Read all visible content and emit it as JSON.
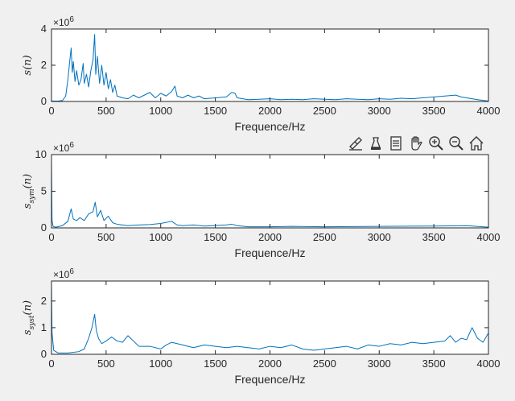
{
  "toolbar": {
    "items": [
      {
        "name": "brush-data-icon"
      },
      {
        "name": "data-tips-icon"
      },
      {
        "name": "insert-legend-icon"
      },
      {
        "name": "pan-hand-icon"
      },
      {
        "name": "zoom-in-icon"
      },
      {
        "name": "zoom-out-icon"
      },
      {
        "name": "restore-view-icon"
      }
    ]
  },
  "colors": {
    "background": "#f0f0f0",
    "axes": "#ffffff",
    "line": "#0072bd",
    "text": "#262626"
  },
  "chart_data": [
    {
      "type": "line",
      "ylabel_main": "s(n)",
      "ylabel_sub": "",
      "xlabel": "Frequence/Hz",
      "exponent_label": "×10",
      "exponent_power": "6",
      "xlim": [
        0,
        4000
      ],
      "ylim": [
        0,
        4
      ],
      "xticks": [
        0,
        500,
        1000,
        1500,
        2000,
        2500,
        3000,
        3500,
        4000
      ],
      "yticks": [
        0,
        2,
        4
      ],
      "series": [
        {
          "x": [
            0,
            10,
            60,
            100,
            130,
            150,
            170,
            180,
            190,
            200,
            215,
            230,
            250,
            270,
            290,
            300,
            320,
            340,
            360,
            380,
            395,
            405,
            420,
            440,
            460,
            480,
            500,
            520,
            540,
            560,
            580,
            600,
            650,
            700,
            750,
            800,
            900,
            950,
            1000,
            1050,
            1100,
            1130,
            1150,
            1200,
            1250,
            1300,
            1350,
            1400,
            1500,
            1600,
            1650,
            1680,
            1700,
            1800,
            1900,
            2000,
            2100,
            2200,
            2300,
            2400,
            2500,
            2600,
            2700,
            2800,
            2900,
            3000,
            3100,
            3200,
            3300,
            3400,
            3500,
            3600,
            3700,
            3750,
            3800,
            3900,
            4000
          ],
          "values": [
            0.05,
            0.02,
            0.02,
            0.05,
            0.3,
            1.2,
            2.4,
            2.95,
            1.6,
            2.2,
            1.1,
            1.7,
            0.9,
            1.2,
            2.1,
            1.0,
            1.5,
            0.8,
            1.7,
            2.3,
            3.7,
            1.5,
            2.5,
            1.0,
            2.0,
            0.9,
            1.6,
            0.7,
            1.2,
            0.5,
            0.9,
            0.3,
            0.2,
            0.15,
            0.35,
            0.2,
            0.5,
            0.2,
            0.45,
            0.3,
            0.55,
            0.85,
            0.3,
            0.2,
            0.35,
            0.2,
            0.3,
            0.15,
            0.2,
            0.25,
            0.5,
            0.45,
            0.2,
            0.1,
            0.12,
            0.15,
            0.1,
            0.12,
            0.1,
            0.15,
            0.12,
            0.1,
            0.15,
            0.12,
            0.1,
            0.15,
            0.12,
            0.18,
            0.15,
            0.2,
            0.25,
            0.3,
            0.35,
            0.25,
            0.2,
            0.1,
            0.02
          ]
        }
      ]
    },
    {
      "type": "line",
      "ylabel_main": "s",
      "ylabel_sub": "sym",
      "ylabel_suffix": "(n)",
      "xlabel": "Frequence/Hz",
      "exponent_label": "×10",
      "exponent_power": "6",
      "xlim": [
        0,
        4000
      ],
      "ylim": [
        0,
        10
      ],
      "xticks": [
        0,
        500,
        1000,
        1500,
        2000,
        2500,
        3000,
        3500,
        4000
      ],
      "yticks": [
        0,
        5,
        10
      ],
      "series": [
        {
          "x": [
            0,
            5,
            15,
            40,
            100,
            150,
            180,
            200,
            230,
            260,
            300,
            340,
            380,
            400,
            420,
            450,
            480,
            520,
            560,
            600,
            700,
            800,
            900,
            1000,
            1100,
            1150,
            1200,
            1300,
            1400,
            1600,
            1650,
            1700,
            1800,
            2000,
            2200,
            2500,
            3000,
            3500,
            3800,
            4000
          ],
          "values": [
            9.0,
            1.0,
            0.2,
            0.1,
            0.3,
            0.9,
            2.6,
            1.2,
            1.0,
            1.4,
            1.0,
            1.9,
            2.2,
            3.5,
            1.5,
            2.4,
            1.0,
            1.6,
            0.7,
            0.5,
            0.3,
            0.4,
            0.45,
            0.6,
            0.9,
            0.4,
            0.3,
            0.4,
            0.25,
            0.4,
            0.5,
            0.3,
            0.15,
            0.15,
            0.2,
            0.15,
            0.2,
            0.25,
            0.3,
            0.1
          ]
        }
      ]
    },
    {
      "type": "line",
      "ylabel_main": "s",
      "ylabel_sub": "syst",
      "ylabel_suffix": "(n)",
      "xlabel": "Frequence/Hz",
      "exponent_label": "×10",
      "exponent_power": "6",
      "xlim": [
        0,
        4000
      ],
      "ylim": [
        0,
        2.75
      ],
      "xticks": [
        0,
        500,
        1000,
        1500,
        2000,
        2500,
        3000,
        3500,
        4000
      ],
      "yticks": [
        0,
        1,
        2
      ],
      "series": [
        {
          "x": [
            0,
            5,
            20,
            60,
            150,
            250,
            300,
            340,
            370,
            395,
            410,
            430,
            460,
            500,
            550,
            600,
            650,
            700,
            750,
            800,
            900,
            1000,
            1050,
            1100,
            1200,
            1300,
            1400,
            1500,
            1600,
            1700,
            1800,
            1900,
            2000,
            2100,
            2200,
            2300,
            2400,
            2500,
            2600,
            2700,
            2800,
            2900,
            3000,
            3100,
            3200,
            3300,
            3400,
            3500,
            3600,
            3650,
            3700,
            3750,
            3800,
            3850,
            3900,
            3950,
            4000
          ],
          "values": [
            2.6,
            0.8,
            0.15,
            0.05,
            0.05,
            0.1,
            0.2,
            0.6,
            1.0,
            1.5,
            0.9,
            0.6,
            0.4,
            0.5,
            0.65,
            0.5,
            0.45,
            0.7,
            0.5,
            0.3,
            0.3,
            0.2,
            0.35,
            0.45,
            0.35,
            0.25,
            0.35,
            0.3,
            0.25,
            0.3,
            0.25,
            0.2,
            0.3,
            0.25,
            0.35,
            0.2,
            0.15,
            0.2,
            0.25,
            0.3,
            0.2,
            0.35,
            0.3,
            0.4,
            0.35,
            0.45,
            0.4,
            0.45,
            0.5,
            0.7,
            0.45,
            0.6,
            0.55,
            1.0,
            0.6,
            0.45,
            0.8
          ]
        }
      ]
    }
  ]
}
